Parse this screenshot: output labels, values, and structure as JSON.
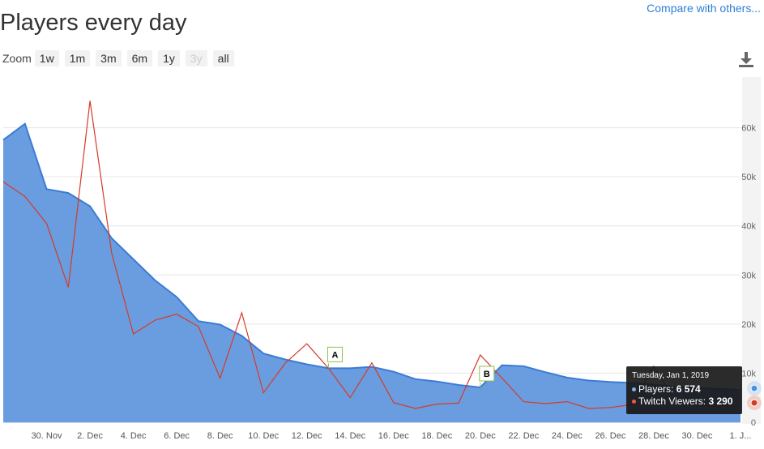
{
  "header": {
    "title": "Players every day",
    "compare_label": "Compare with others..."
  },
  "zoom": {
    "label": "Zoom",
    "buttons": [
      "1w",
      "1m",
      "3m",
      "6m",
      "1y",
      "3y",
      "all"
    ],
    "disabled": [
      "3y"
    ]
  },
  "tooltip": {
    "date": "Tuesday, Jan 1, 2019",
    "players_label": "Players:",
    "players_value": "6 574",
    "twitch_label": "Twitch Viewers:",
    "twitch_value": "3 290"
  },
  "colors": {
    "players_fill": "#6a9de0",
    "players_line": "#3b7bd5",
    "twitch_line": "#d63a26",
    "flag_border": "#8bc34a"
  },
  "chart_data": {
    "type": "area",
    "x": [
      "2018-11-28",
      "2018-11-29",
      "2018-11-30",
      "2018-12-01",
      "2018-12-02",
      "2018-12-03",
      "2018-12-04",
      "2018-12-05",
      "2018-12-06",
      "2018-12-07",
      "2018-12-08",
      "2018-12-09",
      "2018-12-10",
      "2018-12-11",
      "2018-12-12",
      "2018-12-13",
      "2018-12-14",
      "2018-12-15",
      "2018-12-16",
      "2018-12-17",
      "2018-12-18",
      "2018-12-19",
      "2018-12-20",
      "2018-12-21",
      "2018-12-22",
      "2018-12-23",
      "2018-12-24",
      "2018-12-25",
      "2018-12-26",
      "2018-12-27",
      "2018-12-28",
      "2018-12-29",
      "2018-12-30",
      "2018-12-31",
      "2019-01-01"
    ],
    "series": [
      {
        "name": "Players",
        "type": "area",
        "values": [
          57500,
          60800,
          47500,
          46700,
          44000,
          37500,
          33200,
          28900,
          25500,
          20600,
          19900,
          17600,
          14000,
          12800,
          11800,
          11000,
          11000,
          11300,
          10300,
          8800,
          8300,
          7600,
          7100,
          11600,
          11400,
          10200,
          9100,
          8500,
          8200,
          8000,
          7700,
          7200,
          7000,
          6800,
          6574
        ]
      },
      {
        "name": "Twitch Viewers",
        "type": "line",
        "values": [
          49000,
          46000,
          40500,
          27500,
          65500,
          34500,
          18000,
          20800,
          22000,
          19500,
          9000,
          22300,
          6000,
          12000,
          16000,
          11000,
          5000,
          12100,
          4000,
          2800,
          3700,
          3900,
          13700,
          9000,
          4200,
          3800,
          4200,
          2800,
          3000,
          3600,
          11400,
          4200,
          3500,
          3200,
          3290
        ]
      }
    ],
    "flags": [
      {
        "label": "A",
        "x": "2018-12-13"
      },
      {
        "label": "B",
        "x": "2018-12-20"
      }
    ],
    "x_tick_labels": [
      "30. Nov",
      "2. Dec",
      "4. Dec",
      "6. Dec",
      "8. Dec",
      "10. Dec",
      "12. Dec",
      "14. Dec",
      "16. Dec",
      "18. Dec",
      "20. Dec",
      "22. Dec",
      "24. Dec",
      "26. Dec",
      "28. Dec",
      "30. Dec",
      "1. J..."
    ],
    "y_tick_labels": [
      "0",
      "10k",
      "20k",
      "30k",
      "40k",
      "50k",
      "60k"
    ],
    "ylim": [
      0,
      70000
    ],
    "grid": true,
    "legend": "none"
  }
}
